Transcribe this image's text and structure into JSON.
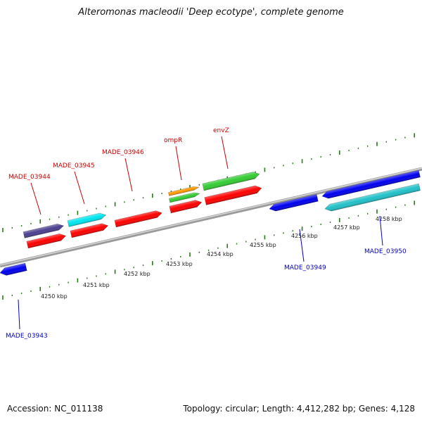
{
  "title": "Alteromonas macleodii 'Deep ecotype', complete genome",
  "footer": {
    "accession": "Accession: NC_011138",
    "stats": "Topology: circular; Length: 4,412,282 bp; Genes: 4,128"
  },
  "colors": {
    "backbone": "#888888",
    "tick": "#2a7a1a",
    "label_red": "#cc0000",
    "label_blue": "#0000cc"
  },
  "kbp_labels": [
    "4250 kbp",
    "4251 kbp",
    "4252 kbp",
    "4253 kbp",
    "4254 kbp",
    "4255 kbp",
    "4256 kbp",
    "4257 kbp",
    "4258 kbp"
  ],
  "gene_labels": [
    {
      "text": "MADE_03944",
      "color": "red"
    },
    {
      "text": "MADE_03945",
      "color": "red"
    },
    {
      "text": "MADE_03946",
      "color": "red"
    },
    {
      "text": "ompR",
      "color": "red"
    },
    {
      "text": "envZ",
      "color": "red"
    },
    {
      "text": "MADE_03943",
      "color": "blue"
    },
    {
      "text": "MADE_03949",
      "color": "blue"
    },
    {
      "text": "MADE_03950",
      "color": "blue"
    }
  ],
  "genes": [
    {
      "name": "MADE_03944 (upper)",
      "color": "#4a3f8f",
      "strand": "+"
    },
    {
      "name": "MADE_03944",
      "color": "#ff0000",
      "strand": "+"
    },
    {
      "name": "MADE_03945 (upper)",
      "color": "#00e5ee",
      "strand": "+"
    },
    {
      "name": "MADE_03945",
      "color": "#ff0000",
      "strand": "+"
    },
    {
      "name": "MADE_03946",
      "color": "#ff0000",
      "strand": "+"
    },
    {
      "name": "ompR (orange)",
      "color": "#ff9900",
      "strand": "+"
    },
    {
      "name": "ompR (green)",
      "color": "#33cc33",
      "strand": "+"
    },
    {
      "name": "ompR",
      "color": "#ff0000",
      "strand": "+"
    },
    {
      "name": "envZ (green)",
      "color": "#33cc33",
      "strand": "+"
    },
    {
      "name": "envZ",
      "color": "#ff0000",
      "strand": "+"
    },
    {
      "name": "MADE_03943",
      "color": "#0000ee",
      "strand": "-"
    },
    {
      "name": "MADE_03949",
      "color": "#0000ee",
      "strand": "-"
    },
    {
      "name": "MADE_03950",
      "color": "#0000ee",
      "strand": "-"
    },
    {
      "name": "MADE_03950 (cyan)",
      "color": "#20c0c8",
      "strand": "-"
    }
  ]
}
